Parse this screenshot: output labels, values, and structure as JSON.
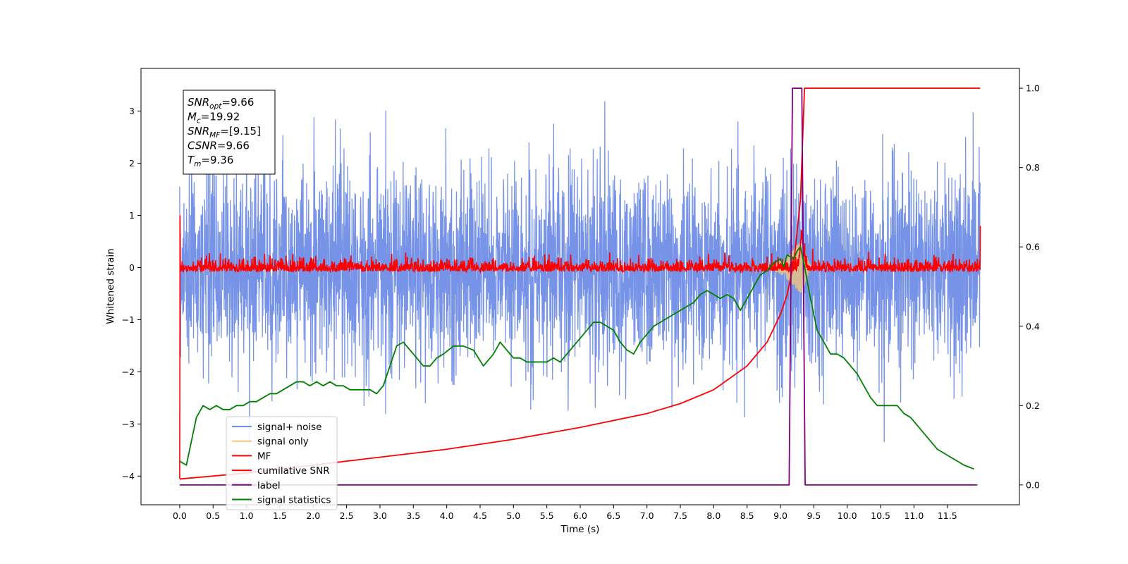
{
  "chart_data": {
    "type": "line",
    "xlabel": "Time (s)",
    "ylabel": "Whitened strain",
    "xlim": [
      -0.58,
      12.58
    ],
    "ylim": [
      -4.55,
      3.82
    ],
    "y2lim": [
      -0.05,
      1.05
    ],
    "x_ticks": [
      "0.0",
      "0.5",
      "1.0",
      "1.5",
      "2.0",
      "2.5",
      "3.0",
      "3.5",
      "4.0",
      "4.5",
      "5.0",
      "5.5",
      "6.0",
      "6.5",
      "7.0",
      "7.5",
      "8.0",
      "8.5",
      "9.0",
      "9.5",
      "10.0",
      "10.5",
      "11.0",
      "11.5"
    ],
    "y_ticks": [
      "3",
      "2",
      "1",
      "0",
      "−1",
      "−2",
      "−3",
      "−4"
    ],
    "y2_ticks": [
      "1.0",
      "0.8",
      "0.6",
      "0.4",
      "0.2",
      "0.0"
    ],
    "grid": false,
    "legend_position": "lower-left",
    "annotation": {
      "lines": [
        {
          "sym": "SNR",
          "sub": "opt",
          "rest": "=9.66"
        },
        {
          "sym": "M",
          "sub": "c",
          "rest": "=19.92"
        },
        {
          "sym": "SNR",
          "sub": "MF",
          "rest": "=[9.15]"
        },
        {
          "sym": "CSNR",
          "sub": "",
          "rest": "=9.66"
        },
        {
          "sym": "T",
          "sub": "m",
          "rest": "=9.36"
        }
      ]
    },
    "series": [
      {
        "name": "signal+ noise",
        "color": "#6f8de6",
        "axis": "left",
        "description": "white noise, amplitude roughly ±2, peaks to ±3.4, over 0–12 s"
      },
      {
        "name": "signal only",
        "color": "#f7c87a",
        "axis": "left",
        "description": "chirp growing to about ±0.5 peaking near 9.3 s"
      },
      {
        "name": "MF",
        "color": "#ff0000",
        "axis": "left",
        "description": "matched-filter output near 0 with ±0.2 noise, spike near 9.3 s"
      },
      {
        "name": "cumilative SNR",
        "color": "#ff0000",
        "axis": "right",
        "x": [
          0.0,
          1.0,
          2.0,
          3.0,
          4.0,
          5.0,
          6.0,
          7.0,
          7.5,
          8.0,
          8.5,
          8.8,
          9.0,
          9.1,
          9.2,
          9.3,
          9.36,
          9.4,
          11.99
        ],
        "values": [
          0.015,
          0.03,
          0.05,
          0.07,
          0.09,
          0.115,
          0.145,
          0.18,
          0.205,
          0.24,
          0.3,
          0.36,
          0.43,
          0.48,
          0.56,
          0.72,
          1.0,
          1.0,
          1.0
        ]
      },
      {
        "name": "label",
        "color": "#800080",
        "axis": "right",
        "x": [
          0.0,
          9.13,
          9.18,
          9.32,
          9.37,
          11.95
        ],
        "values": [
          0.0,
          0.0,
          1.0,
          1.0,
          0.0,
          0.0
        ]
      },
      {
        "name": "signal statistics",
        "color": "#008000",
        "axis": "right",
        "x": [
          0.0,
          0.1,
          0.25,
          0.35,
          0.45,
          0.55,
          0.65,
          0.75,
          0.85,
          0.95,
          1.05,
          1.15,
          1.25,
          1.35,
          1.45,
          1.55,
          1.65,
          1.75,
          1.85,
          1.95,
          2.05,
          2.15,
          2.25,
          2.35,
          2.45,
          2.55,
          2.65,
          2.75,
          2.85,
          2.95,
          3.05,
          3.15,
          3.25,
          3.35,
          3.45,
          3.55,
          3.65,
          3.75,
          3.85,
          3.95,
          4.1,
          4.25,
          4.4,
          4.55,
          4.7,
          4.8,
          4.9,
          5.0,
          5.1,
          5.2,
          5.3,
          5.4,
          5.5,
          5.6,
          5.7,
          5.8,
          5.9,
          6.0,
          6.1,
          6.2,
          6.3,
          6.4,
          6.5,
          6.6,
          6.7,
          6.8,
          6.9,
          7.0,
          7.1,
          7.2,
          7.3,
          7.4,
          7.5,
          7.6,
          7.7,
          7.8,
          7.9,
          8.0,
          8.1,
          8.2,
          8.3,
          8.4,
          8.5,
          8.6,
          8.7,
          8.8,
          8.9,
          9.0,
          9.05,
          9.1,
          9.2,
          9.25,
          9.3,
          9.35,
          9.45,
          9.55,
          9.65,
          9.75,
          9.85,
          9.95,
          10.05,
          10.15,
          10.25,
          10.35,
          10.45,
          10.55,
          10.65,
          10.75,
          10.85,
          10.95,
          11.05,
          11.15,
          11.25,
          11.35,
          11.45,
          11.55,
          11.65,
          11.75,
          11.9
        ],
        "values": [
          0.06,
          0.05,
          0.17,
          0.2,
          0.19,
          0.2,
          0.19,
          0.19,
          0.2,
          0.2,
          0.21,
          0.21,
          0.22,
          0.23,
          0.23,
          0.24,
          0.25,
          0.26,
          0.26,
          0.25,
          0.26,
          0.25,
          0.26,
          0.25,
          0.25,
          0.24,
          0.24,
          0.24,
          0.24,
          0.23,
          0.25,
          0.3,
          0.35,
          0.36,
          0.34,
          0.32,
          0.3,
          0.3,
          0.32,
          0.33,
          0.35,
          0.35,
          0.34,
          0.3,
          0.33,
          0.36,
          0.34,
          0.32,
          0.32,
          0.31,
          0.31,
          0.31,
          0.31,
          0.32,
          0.31,
          0.33,
          0.35,
          0.37,
          0.39,
          0.41,
          0.41,
          0.4,
          0.39,
          0.36,
          0.34,
          0.33,
          0.36,
          0.38,
          0.4,
          0.41,
          0.42,
          0.43,
          0.44,
          0.45,
          0.46,
          0.48,
          0.49,
          0.48,
          0.47,
          0.48,
          0.47,
          0.44,
          0.47,
          0.5,
          0.53,
          0.54,
          0.56,
          0.57,
          0.55,
          0.58,
          0.57,
          0.59,
          0.6,
          0.56,
          0.47,
          0.39,
          0.36,
          0.33,
          0.33,
          0.32,
          0.3,
          0.28,
          0.25,
          0.22,
          0.2,
          0.2,
          0.2,
          0.2,
          0.18,
          0.17,
          0.15,
          0.13,
          0.11,
          0.09,
          0.08,
          0.07,
          0.06,
          0.05,
          0.04
        ]
      }
    ]
  }
}
